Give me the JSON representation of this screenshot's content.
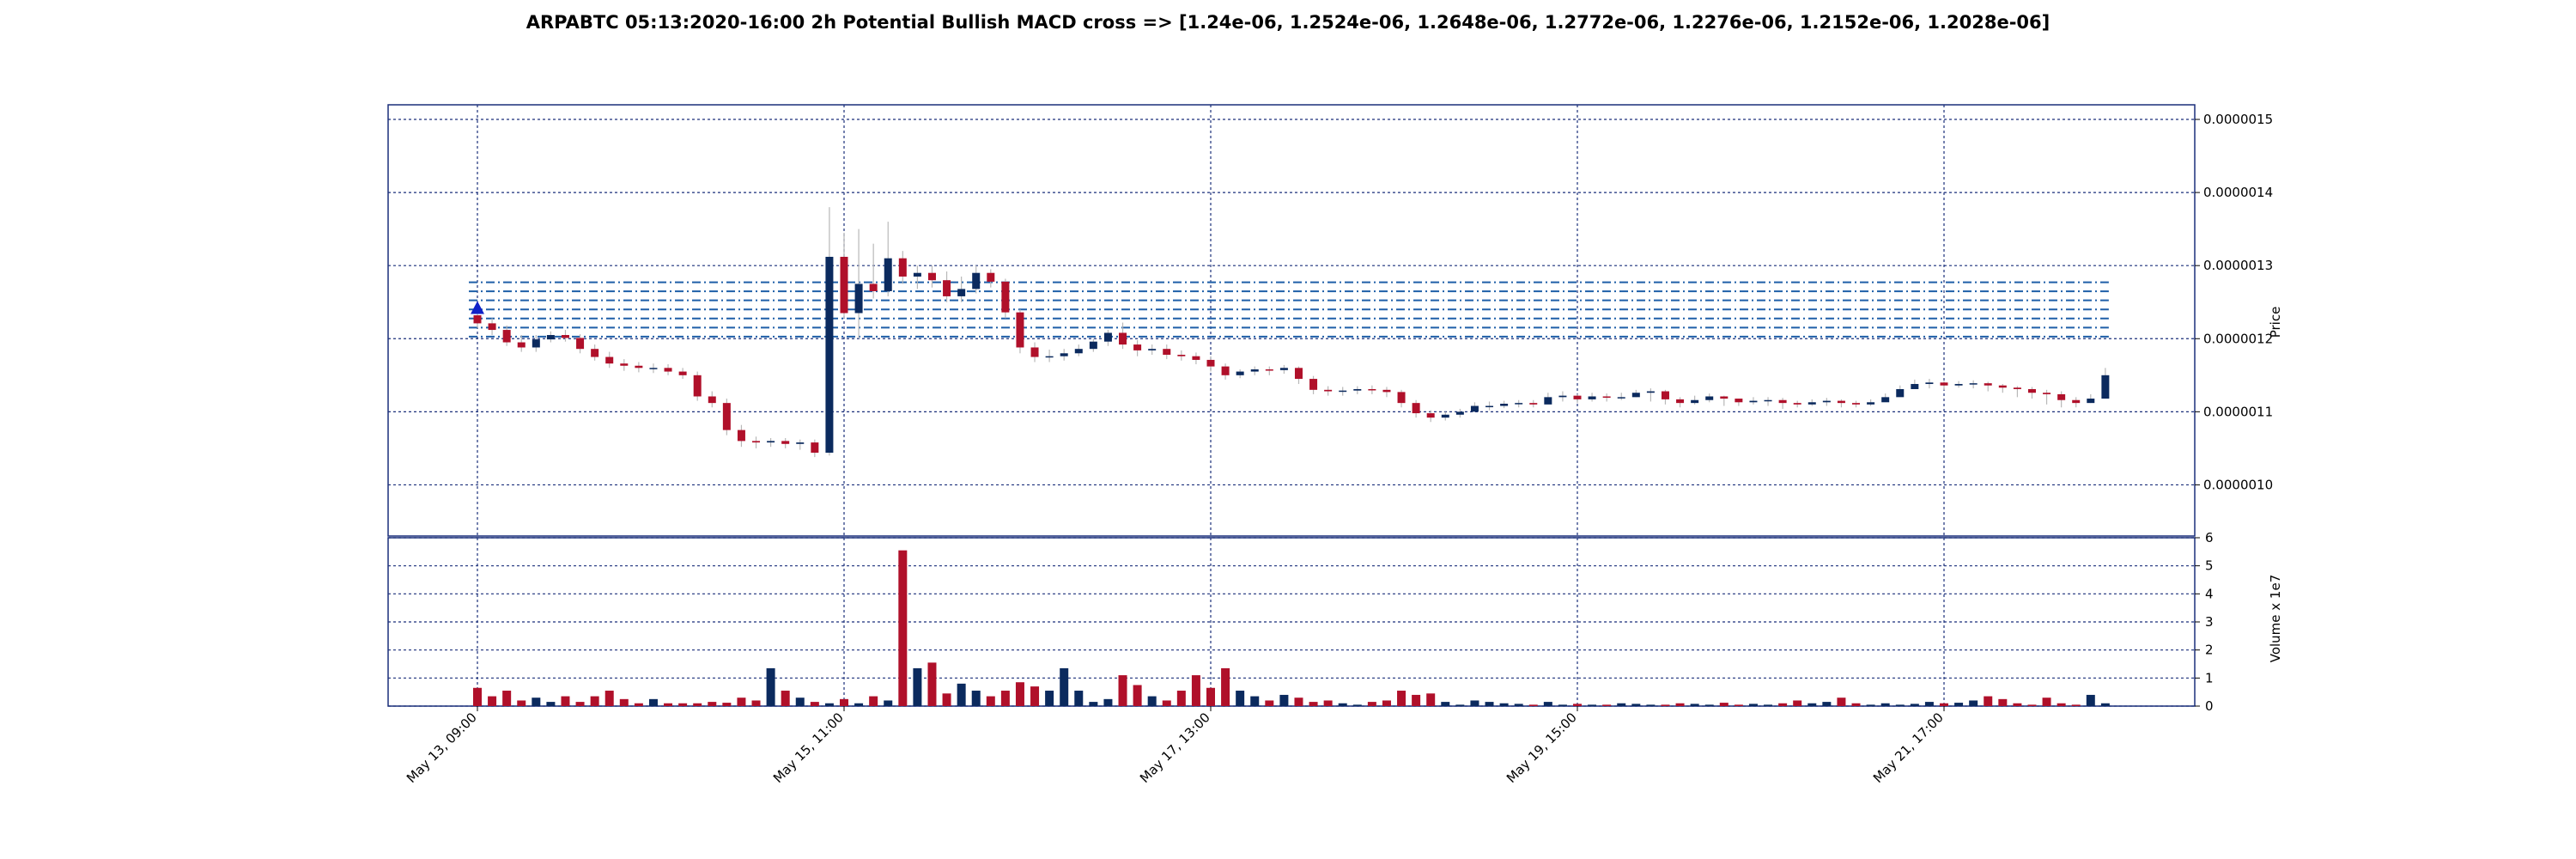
{
  "title": "ARPABTC 05:13:2020-16:00 2h Potential Bullish MACD cross => [1.24e-06, 1.2524e-06, 1.2648e-06, 1.2772e-06, 1.2276e-06, 1.2152e-06, 1.2028e-06]",
  "chart_data": [
    {
      "type": "candlestick",
      "ylabel": "Price",
      "ylim": [
        9.3e-07,
        1.52e-06
      ],
      "y_ticks": [
        "0.0000010",
        "0.0000011",
        "0.0000012",
        "0.0000013",
        "0.0000014",
        "0.0000015"
      ],
      "y_tick_values": [
        1e-06,
        1.1e-06,
        1.2e-06,
        1.3e-06,
        1.4e-06,
        1.5e-06
      ],
      "x_ticks": [
        "May 13, 09:00",
        "May 15, 11:00",
        "May 17, 13:00",
        "May 19, 15:00",
        "May 21, 17:00"
      ],
      "x_tick_index": [
        0,
        25,
        50,
        75,
        100
      ],
      "levels": [
        1.24e-06,
        1.2524e-06,
        1.2648e-06,
        1.2772e-06,
        1.2276e-06,
        1.2152e-06,
        1.2028e-06
      ],
      "signal_marker": {
        "index": 0,
        "price": 1.242e-06,
        "type": "bullish"
      },
      "grid": true,
      "bull_color": "#0b2a5e",
      "bear_color": "#b0102a",
      "level_color": "#1f5fa8",
      "grid_color": "#1a2f7a",
      "candles": {
        "index": [
          0,
          1,
          2,
          3,
          4,
          5,
          6,
          7,
          8,
          9,
          10,
          11,
          12,
          13,
          14,
          15,
          16,
          17,
          18,
          19,
          20,
          21,
          22,
          23,
          24,
          25,
          26,
          27,
          28,
          29,
          30,
          31,
          32,
          33,
          34,
          35,
          36,
          37,
          38,
          39,
          40,
          41,
          42,
          43,
          44,
          45,
          46,
          47,
          48,
          49,
          50,
          51,
          52,
          53,
          54,
          55,
          56,
          57,
          58,
          59,
          60,
          61,
          62,
          63,
          64,
          65,
          66,
          67,
          68,
          69,
          70,
          71,
          72,
          73,
          74,
          75,
          76,
          77,
          78,
          79,
          80,
          81,
          82,
          83,
          84,
          85,
          86,
          87,
          88,
          89,
          90,
          91,
          92,
          93,
          94,
          95,
          96,
          97,
          98,
          99,
          100,
          101,
          102,
          103,
          104,
          105,
          106,
          107,
          108,
          109,
          110,
          111
        ],
        "open": [
          1.232,
          1.221,
          1.212,
          1.195,
          1.188,
          1.199,
          1.205,
          1.201,
          1.186,
          1.175,
          1.166,
          1.163,
          1.16,
          1.16,
          1.155,
          1.15,
          1.121,
          1.112,
          1.075,
          1.06,
          1.058,
          1.06,
          1.056,
          1.058,
          1.044,
          1.312,
          1.235,
          1.275,
          1.265,
          1.31,
          1.285,
          1.29,
          1.28,
          1.258,
          1.268,
          1.29,
          1.278,
          1.236,
          1.188,
          1.175,
          1.176,
          1.18,
          1.186,
          1.196,
          1.208,
          1.192,
          1.184,
          1.186,
          1.178,
          1.176,
          1.171,
          1.162,
          1.15,
          1.155,
          1.158,
          1.157,
          1.16,
          1.145,
          1.13,
          1.128,
          1.129,
          1.131,
          1.13,
          1.127,
          1.112,
          1.098,
          1.092,
          1.096,
          1.1,
          1.108,
          1.108,
          1.111,
          1.112,
          1.11,
          1.12,
          1.122,
          1.117,
          1.121,
          1.12,
          1.12,
          1.126,
          1.128,
          1.117,
          1.112,
          1.116,
          1.121,
          1.118,
          1.113,
          1.115,
          1.116,
          1.112,
          1.11,
          1.113,
          1.115,
          1.112,
          1.11,
          1.113,
          1.12,
          1.131,
          1.138,
          1.14,
          1.136,
          1.138,
          1.139,
          1.136,
          1.133,
          1.131,
          1.126,
          1.124,
          1.116,
          1.112,
          1.118
        ],
        "close": [
          1.221,
          1.212,
          1.195,
          1.188,
          1.199,
          1.205,
          1.201,
          1.186,
          1.175,
          1.166,
          1.163,
          1.16,
          1.16,
          1.155,
          1.15,
          1.121,
          1.112,
          1.075,
          1.06,
          1.058,
          1.06,
          1.056,
          1.058,
          1.044,
          1.312,
          1.235,
          1.275,
          1.265,
          1.31,
          1.285,
          1.29,
          1.28,
          1.258,
          1.268,
          1.29,
          1.278,
          1.236,
          1.188,
          1.175,
          1.176,
          1.18,
          1.186,
          1.196,
          1.208,
          1.192,
          1.184,
          1.186,
          1.178,
          1.176,
          1.171,
          1.162,
          1.15,
          1.155,
          1.158,
          1.157,
          1.16,
          1.145,
          1.13,
          1.128,
          1.129,
          1.131,
          1.13,
          1.127,
          1.112,
          1.098,
          1.092,
          1.096,
          1.1,
          1.108,
          1.108,
          1.111,
          1.112,
          1.11,
          1.12,
          1.122,
          1.117,
          1.121,
          1.12,
          1.12,
          1.126,
          1.128,
          1.117,
          1.112,
          1.116,
          1.121,
          1.118,
          1.113,
          1.115,
          1.116,
          1.112,
          1.11,
          1.113,
          1.115,
          1.112,
          1.11,
          1.113,
          1.12,
          1.131,
          1.138,
          1.14,
          1.136,
          1.138,
          1.139,
          1.136,
          1.133,
          1.131,
          1.126,
          1.124,
          1.116,
          1.112,
          1.118,
          1.15
        ],
        "high": [
          1.24,
          1.228,
          1.218,
          1.205,
          1.205,
          1.21,
          1.212,
          1.206,
          1.192,
          1.182,
          1.172,
          1.168,
          1.166,
          1.165,
          1.16,
          1.155,
          1.128,
          1.118,
          1.082,
          1.066,
          1.064,
          1.064,
          1.062,
          1.062,
          1.38,
          1.345,
          1.35,
          1.33,
          1.36,
          1.32,
          1.3,
          1.3,
          1.292,
          1.285,
          1.3,
          1.295,
          1.282,
          1.24,
          1.195,
          1.185,
          1.186,
          1.192,
          1.2,
          1.212,
          1.222,
          1.198,
          1.192,
          1.192,
          1.184,
          1.181,
          1.176,
          1.166,
          1.158,
          1.162,
          1.162,
          1.164,
          1.162,
          1.149,
          1.135,
          1.134,
          1.135,
          1.136,
          1.134,
          1.13,
          1.116,
          1.102,
          1.1,
          1.104,
          1.113,
          1.114,
          1.115,
          1.116,
          1.116,
          1.126,
          1.128,
          1.124,
          1.126,
          1.125,
          1.126,
          1.13,
          1.132,
          1.13,
          1.12,
          1.122,
          1.125,
          1.122,
          1.118,
          1.12,
          1.12,
          1.119,
          1.115,
          1.117,
          1.119,
          1.117,
          1.115,
          1.117,
          1.125,
          1.136,
          1.144,
          1.145,
          1.142,
          1.142,
          1.143,
          1.141,
          1.138,
          1.135,
          1.134,
          1.13,
          1.128,
          1.12,
          1.124,
          1.16
        ],
        "low": [
          1.215,
          1.205,
          1.19,
          1.182,
          1.182,
          1.195,
          1.196,
          1.18,
          1.17,
          1.16,
          1.156,
          1.154,
          1.153,
          1.15,
          1.145,
          1.115,
          1.106,
          1.068,
          1.052,
          1.05,
          1.052,
          1.05,
          1.048,
          1.038,
          1.04,
          1.228,
          1.2,
          1.255,
          1.258,
          1.275,
          1.268,
          1.27,
          1.25,
          1.25,
          1.262,
          1.27,
          1.228,
          1.18,
          1.168,
          1.168,
          1.17,
          1.176,
          1.182,
          1.19,
          1.186,
          1.176,
          1.178,
          1.172,
          1.17,
          1.165,
          1.155,
          1.144,
          1.146,
          1.15,
          1.15,
          1.152,
          1.138,
          1.124,
          1.122,
          1.122,
          1.124,
          1.124,
          1.12,
          1.106,
          1.092,
          1.086,
          1.088,
          1.092,
          1.102,
          1.102,
          1.105,
          1.106,
          1.106,
          1.114,
          1.114,
          1.112,
          1.114,
          1.114,
          1.116,
          1.12,
          1.114,
          1.11,
          1.106,
          1.11,
          1.113,
          1.108,
          1.108,
          1.11,
          1.108,
          1.104,
          1.106,
          1.108,
          1.108,
          1.106,
          1.106,
          1.108,
          1.114,
          1.126,
          1.133,
          1.132,
          1.13,
          1.133,
          1.132,
          1.128,
          1.126,
          1.12,
          1.118,
          1.11,
          1.106,
          1.106,
          1.112,
          1.14
        ]
      }
    },
    {
      "type": "bar",
      "ylabel": "Volume x 1e7",
      "ylim": [
        0,
        6
      ],
      "y_ticks": [
        "0",
        "1",
        "2",
        "3",
        "4",
        "5",
        "6"
      ],
      "y_tick_values": [
        0,
        1,
        2,
        3,
        4,
        5,
        6
      ],
      "values": [
        0.65,
        0.35,
        0.55,
        0.2,
        0.3,
        0.15,
        0.35,
        0.15,
        0.35,
        0.55,
        0.25,
        0.1,
        0.25,
        0.1,
        0.1,
        0.1,
        0.15,
        0.12,
        0.3,
        0.2,
        1.35,
        0.55,
        0.3,
        0.15,
        0.1,
        0.25,
        0.1,
        0.35,
        0.2,
        5.55,
        1.35,
        1.55,
        0.45,
        0.8,
        0.55,
        0.35,
        0.55,
        0.85,
        0.7,
        0.55,
        1.35,
        0.55,
        0.15,
        0.25,
        1.1,
        0.75,
        0.35,
        0.2,
        0.55,
        1.1,
        0.65,
        1.35,
        0.55,
        0.35,
        0.2,
        0.4,
        0.3,
        0.15,
        0.2,
        0.1,
        0.05,
        0.15,
        0.2,
        0.55,
        0.4,
        0.45,
        0.15,
        0.05,
        0.2,
        0.15,
        0.1,
        0.08,
        0.05,
        0.15,
        0.05,
        0.08,
        0.05,
        0.05,
        0.1,
        0.08,
        0.05,
        0.05,
        0.1,
        0.08,
        0.05,
        0.12,
        0.05,
        0.08,
        0.05,
        0.1,
        0.2,
        0.1,
        0.15,
        0.3,
        0.1,
        0.05,
        0.1,
        0.05,
        0.08,
        0.15,
        0.1,
        0.12,
        0.2,
        0.35,
        0.25,
        0.1,
        0.05,
        0.3,
        0.1,
        0.05,
        0.4,
        0.1
      ]
    }
  ]
}
